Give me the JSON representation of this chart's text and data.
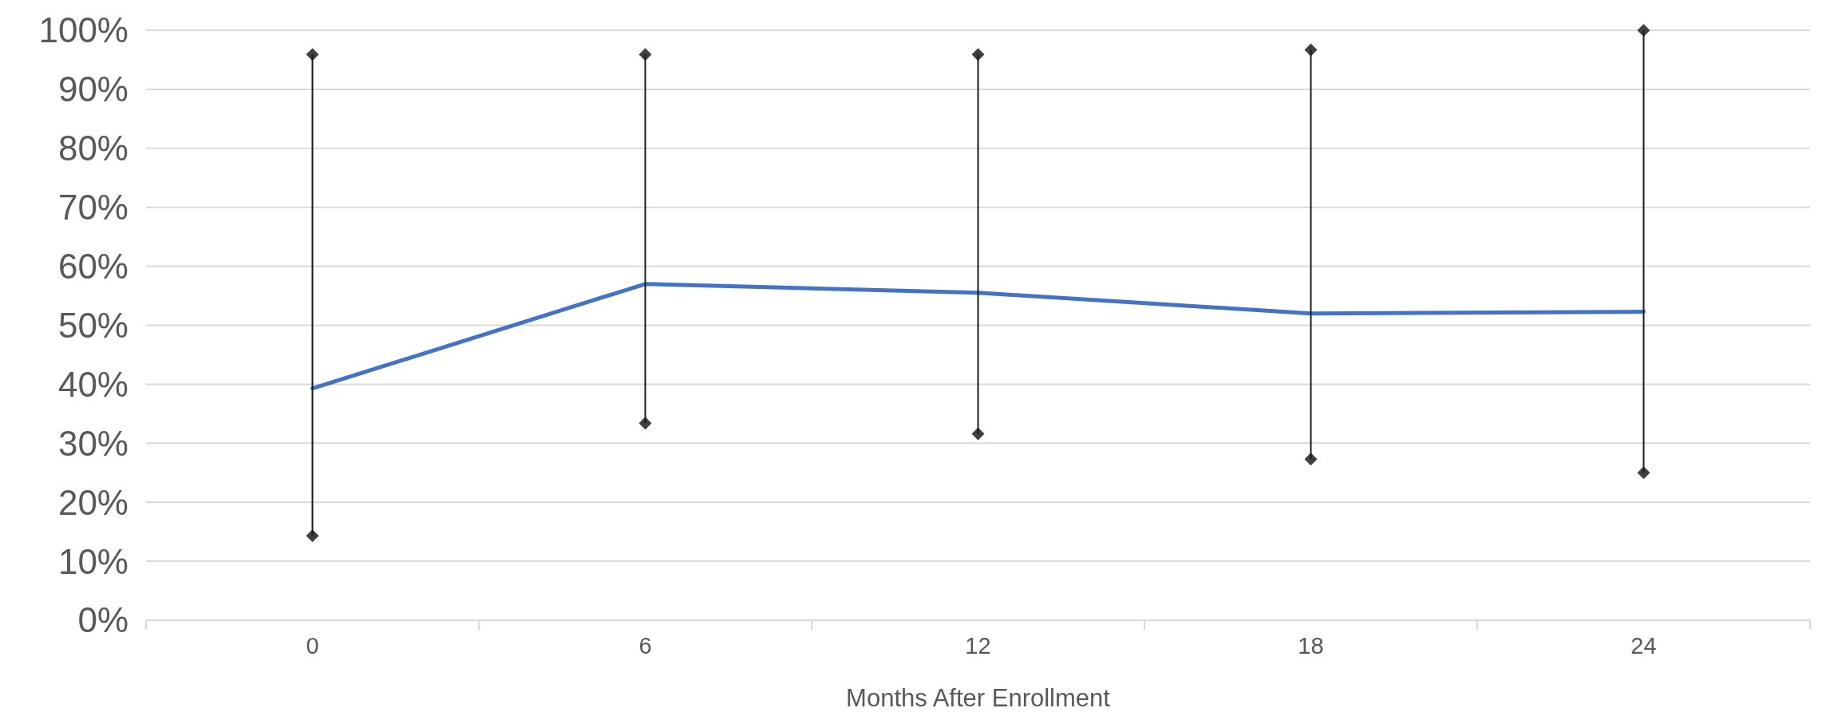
{
  "chart_data": {
    "type": "line",
    "xlabel": "Months After Enrollment",
    "categories": [
      "0",
      "6",
      "12",
      "18",
      "24"
    ],
    "series": [
      {
        "color": "#4472c4",
        "values": [
          39.3,
          57.0,
          55.5,
          52.0,
          52.3
        ]
      },
      {
        "type": "scatter",
        "marker": "diamond",
        "color": "#404040",
        "values": [
          95.9,
          95.9,
          95.9,
          96.7,
          100
        ]
      },
      {
        "type": "scatter",
        "marker": "diamond",
        "color": "#404040",
        "values": [
          14.3,
          33.4,
          31.6,
          27.3,
          25.0
        ]
      },
      {
        "type": "bar",
        "color": "#1a1a1a",
        "base": [
          14.3,
          33.4,
          31.6,
          27.3,
          25.0
        ],
        "values": [
          81.6,
          62.5,
          64.3,
          69.4,
          75.0
        ]
      }
    ],
    "ylim": [
      0,
      100
    ],
    "yticks": [
      {
        "value": 0,
        "label": "0%"
      },
      {
        "value": 10,
        "label": "10%"
      },
      {
        "value": 20,
        "label": "20%"
      },
      {
        "value": 30,
        "label": "30%"
      },
      {
        "value": 40,
        "label": "40%"
      },
      {
        "value": 50,
        "label": "50%"
      },
      {
        "value": 60,
        "label": "60%"
      },
      {
        "value": 70,
        "label": "70%"
      },
      {
        "value": 80,
        "label": "80%"
      },
      {
        "value": 90,
        "label": "90%"
      },
      {
        "value": 100,
        "label": "100%"
      }
    ],
    "grid": "y"
  }
}
